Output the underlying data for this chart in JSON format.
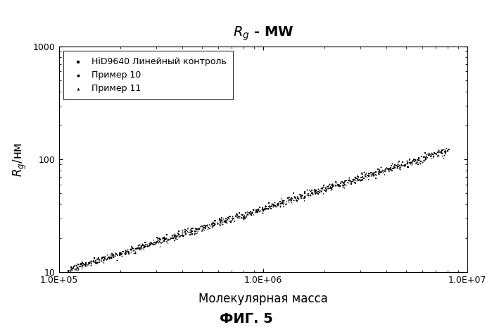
{
  "title": "R_g - MW",
  "xlabel": "Молекулярная масса",
  "ylabel": "R_g/нм",
  "caption": "ФИГ. 5",
  "xlim": [
    100000.0,
    10000000.0
  ],
  "ylim": [
    10,
    1000
  ],
  "xticks": [
    100000.0,
    1000000.0,
    10000000.0
  ],
  "xtick_labels": [
    "1.0E+05",
    "1.0E+06",
    "1.0E+07"
  ],
  "yticks": [
    10,
    100,
    1000
  ],
  "ytick_labels": [
    "10",
    "100",
    "1000"
  ],
  "legend_entries": [
    "HiD9640 Линейный контроль",
    "Пример 10",
    "Пример 11"
  ],
  "legend_markers": [
    "s",
    "o",
    "^"
  ],
  "power_law_coeff": 0.014,
  "power_law_exp": 0.57,
  "n_points": 300,
  "x_start": 110000.0,
  "x_end": 8000000.0,
  "scatter_noise": 0.04,
  "marker_size": 2,
  "color": "#000000",
  "background_color": "#ffffff",
  "title_fontsize": 14,
  "label_fontsize": 12,
  "tick_fontsize": 9,
  "legend_fontsize": 9,
  "caption_fontsize": 14
}
